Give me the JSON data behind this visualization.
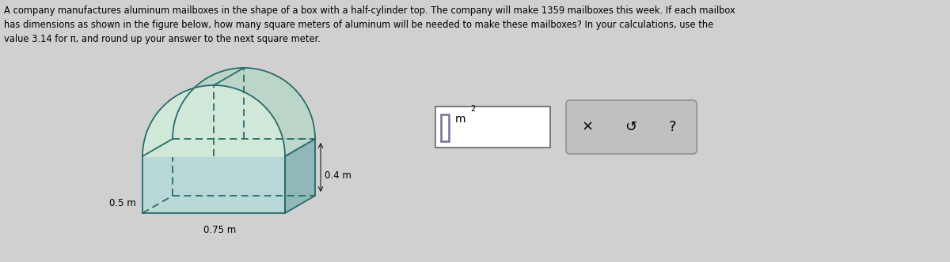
{
  "background_color": "#d0d0d0",
  "text_paragraph": "A company manufactures aluminum mailboxes in the shape of a box with a half-cylinder top. The company will make 1359 mailboxes this week. If each mailbox\nhas dimensions as shown in the figure below, how many square meters of aluminum will be needed to make these mailboxes? In your calculations, use the\nvalue 3.14 for π, and round up your answer to the next square meter.",
  "dim_04": "0.4 m",
  "dim_05": "0.5 m",
  "dim_075": "0.75 m",
  "box_color": "#2a6a6a",
  "box_fill_front": "#b8d8d8",
  "box_fill_right": "#90b8b8",
  "box_fill_top": "#c8e0e0",
  "cyl_fill_front": "#d0e8d8",
  "cyl_fill_top": "#b8d8c8",
  "ans_border": "#7070a0",
  "btn_bg": "#c0c0c0",
  "btn_border": "#909090"
}
